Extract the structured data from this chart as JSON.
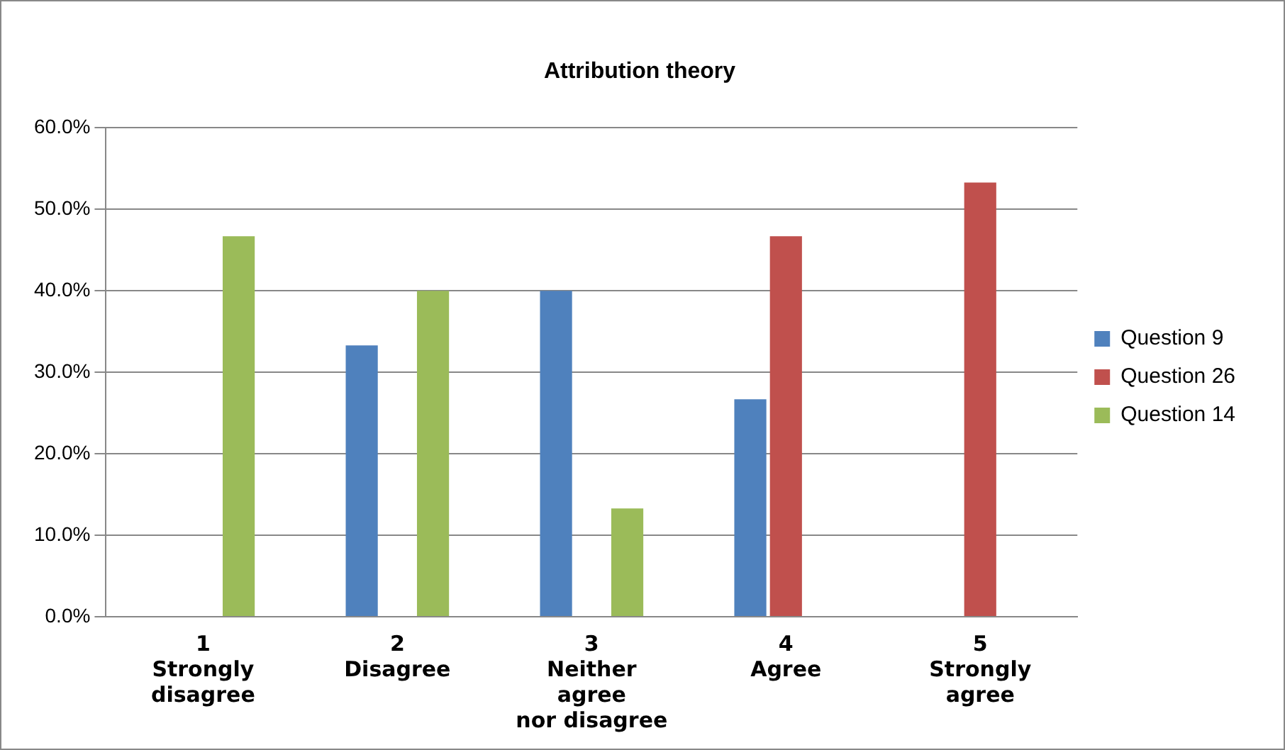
{
  "chart_data": {
    "type": "bar",
    "title": "Attribution theory",
    "categories": [
      "1\nStrongly\ndisagree",
      "2\nDisagree",
      "3\nNeither\nagree\nnor disagree",
      "4\nAgree",
      "5\nStrongly\nagree"
    ],
    "series": [
      {
        "name": "Question 9",
        "color": "#4f81bd",
        "values": [
          0,
          33.3,
          40,
          26.7,
          0
        ]
      },
      {
        "name": "Question 26",
        "color": "#c0504d",
        "values": [
          0,
          0,
          0,
          46.7,
          53.3
        ]
      },
      {
        "name": "Question 14",
        "color": "#9bbb59",
        "values": [
          46.7,
          40,
          13.3,
          0,
          0
        ]
      }
    ],
    "ylim": [
      0,
      60
    ],
    "yticks": [
      {
        "value": 0,
        "label": "0.0%"
      },
      {
        "value": 10,
        "label": "10.0%"
      },
      {
        "value": 20,
        "label": "20.0%"
      },
      {
        "value": 30,
        "label": "30.0%"
      },
      {
        "value": 40,
        "label": "40.0%"
      },
      {
        "value": 50,
        "label": "50.0%"
      },
      {
        "value": 60,
        "label": "60.0%"
      }
    ],
    "grid": "y",
    "legend": "right"
  }
}
